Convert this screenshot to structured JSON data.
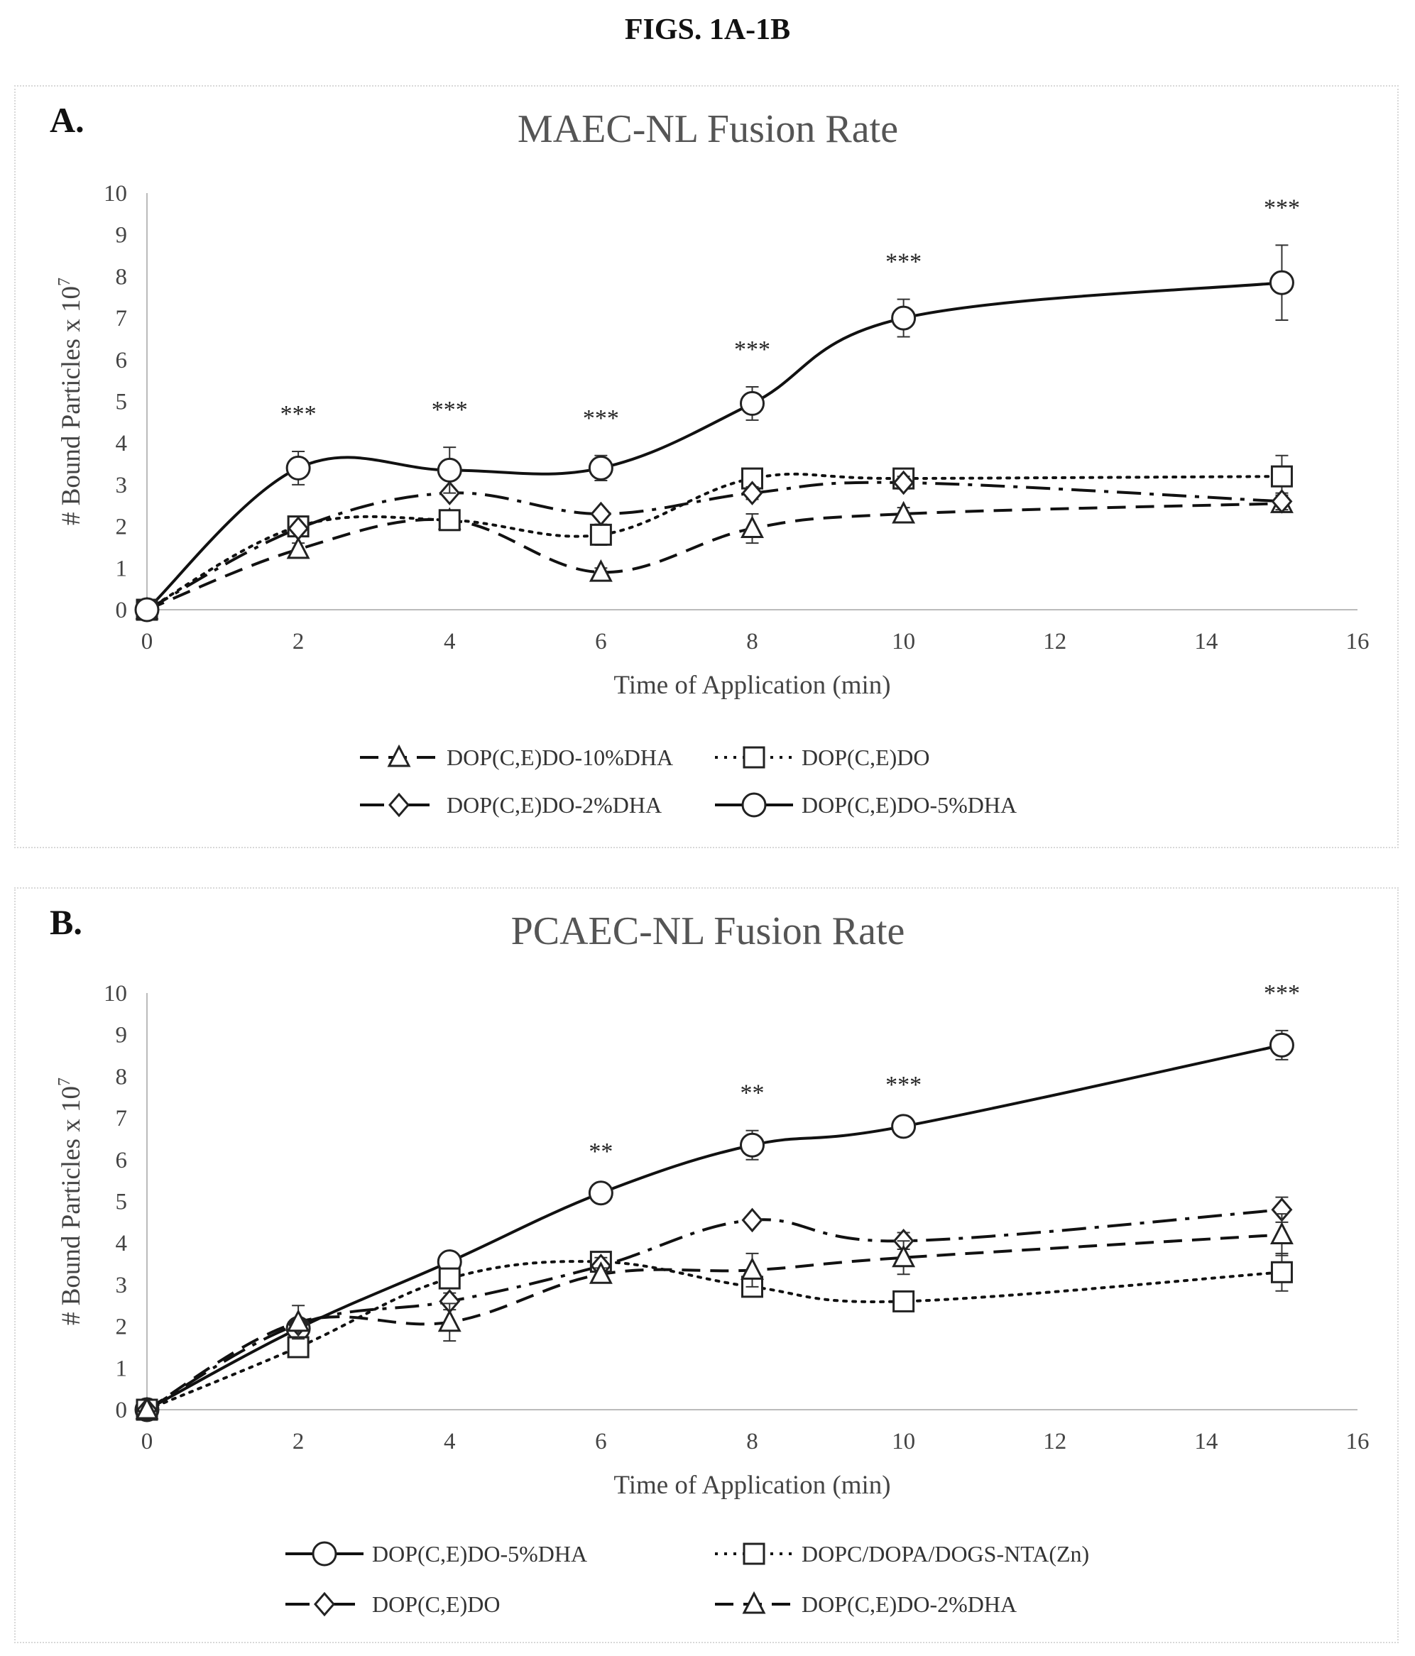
{
  "figure_title": "FIGS. 1A-1B",
  "chart_data": [
    {
      "panel_label": "A.",
      "type": "line",
      "title": "MAEC-NL Fusion Rate",
      "xlabel": "Time of Application (min)",
      "ylabel": "# Bound Particles x 10",
      "ylabel_sup": "7",
      "xlim": [
        0,
        16
      ],
      "ylim": [
        0,
        10
      ],
      "xticks": [
        0,
        2,
        4,
        6,
        8,
        10,
        12,
        14,
        16
      ],
      "yticks": [
        0,
        1,
        2,
        3,
        4,
        5,
        6,
        7,
        8,
        9,
        10
      ],
      "x": [
        0,
        2,
        4,
        6,
        8,
        10,
        15
      ],
      "significance": [
        {
          "x": 2,
          "label": "***"
        },
        {
          "x": 4,
          "label": "***"
        },
        {
          "x": 6,
          "label": "***"
        },
        {
          "x": 8,
          "label": "***"
        },
        {
          "x": 10,
          "label": "***"
        },
        {
          "x": 15,
          "label": "***"
        }
      ],
      "series": [
        {
          "name": "DOP(C,E)DO-10%DHA",
          "marker": "triangle",
          "dash": "dashed",
          "values": [
            0,
            1.45,
            2.15,
            0.9,
            1.95,
            2.3,
            2.55
          ],
          "errors": [
            0,
            0.15,
            0.12,
            0.1,
            0.35,
            0.15,
            0.2
          ]
        },
        {
          "name": "DOP(C,E)DO",
          "marker": "square",
          "dash": "dotted",
          "values": [
            0,
            2.0,
            2.15,
            1.8,
            3.15,
            3.15,
            3.2
          ],
          "errors": [
            0,
            0.15,
            0.12,
            0.25,
            0.15,
            0.1,
            0.5
          ]
        },
        {
          "name": "DOP(C,E)DO-2%DHA",
          "marker": "diamond",
          "dash": "dashdot",
          "values": [
            0,
            1.95,
            2.8,
            2.3,
            2.8,
            3.05,
            2.6
          ],
          "errors": [
            0,
            0.1,
            0.1,
            0.1,
            0.15,
            0.15,
            0.2
          ]
        },
        {
          "name": "DOP(C,E)DO-5%DHA",
          "marker": "circle",
          "dash": "solid",
          "values": [
            0,
            3.4,
            3.35,
            3.4,
            4.95,
            7.0,
            7.85
          ],
          "errors": [
            0,
            0.4,
            0.55,
            0.3,
            0.4,
            0.45,
            0.9
          ]
        }
      ]
    },
    {
      "panel_label": "B.",
      "type": "line",
      "title": "PCAEC-NL Fusion Rate",
      "xlabel": "Time of Application (min)",
      "ylabel": "# Bound Particles x 10",
      "ylabel_sup": "7",
      "xlim": [
        0,
        16
      ],
      "ylim": [
        0,
        10
      ],
      "xticks": [
        0,
        2,
        4,
        6,
        8,
        10,
        12,
        14,
        16
      ],
      "yticks": [
        0,
        1,
        2,
        3,
        4,
        5,
        6,
        7,
        8,
        9,
        10
      ],
      "x": [
        0,
        2,
        4,
        6,
        8,
        10,
        15
      ],
      "significance": [
        {
          "x": 6,
          "label": "**"
        },
        {
          "x": 8,
          "label": "**"
        },
        {
          "x": 10,
          "label": "***"
        },
        {
          "x": 15,
          "label": "***"
        }
      ],
      "series": [
        {
          "name": "DOP(C,E)DO-5%DHA",
          "marker": "circle",
          "dash": "solid",
          "values": [
            0,
            1.95,
            3.55,
            5.2,
            6.35,
            6.8,
            8.75
          ],
          "errors": [
            0,
            0.1,
            0.1,
            0.1,
            0.35,
            0.1,
            0.35
          ]
        },
        {
          "name": "DOPC/DOPA/DOGS-NTA(Zn)",
          "marker": "square",
          "dash": "dotted",
          "values": [
            0,
            1.5,
            3.15,
            3.55,
            2.95,
            2.6,
            3.3
          ],
          "errors": [
            0,
            0.1,
            0.2,
            0.2,
            0.1,
            0.1,
            0.45
          ]
        },
        {
          "name": "DOP(C,E)DO",
          "marker": "diamond",
          "dash": "dashdot",
          "values": [
            0,
            2.05,
            2.6,
            3.45,
            4.55,
            4.05,
            4.8
          ],
          "errors": [
            0,
            0.1,
            0.2,
            0.2,
            0.1,
            0.2,
            0.3
          ]
        },
        {
          "name": "DOP(C,E)DO-2%DHA",
          "marker": "triangle",
          "dash": "dashed",
          "values": [
            0,
            2.1,
            2.1,
            3.25,
            3.35,
            3.65,
            4.2
          ],
          "errors": [
            0,
            0.4,
            0.45,
            0.15,
            0.4,
            0.4,
            0.5
          ]
        }
      ]
    }
  ]
}
